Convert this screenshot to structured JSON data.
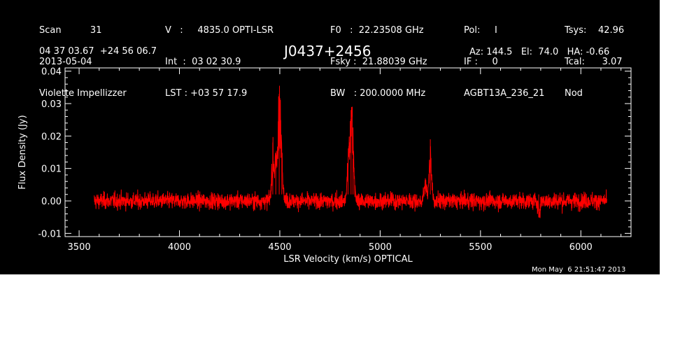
{
  "header": {
    "col1": [
      "Scan          31",
      "2013-05-04",
      "Violette Impellizzer"
    ],
    "col2": [
      "V   :     4835.0 OPTI-LSR",
      "Int  :  03 02 30.9",
      "LST : +03 57 17.9"
    ],
    "col3": [
      "F0   :  22.23508 GHz",
      "Fsky :  21.88039 GHz",
      "BW   : 200.0000 MHz"
    ],
    "col4": [
      "Pol:     I",
      "IF :     0",
      "AGBT13A_236_21"
    ],
    "col5": [
      "Tsys:    42.96",
      "Tcal:      3.07",
      "Nod"
    ],
    "coords": "04 37 03.67  +24 56 06.7",
    "source": "J0437+2456",
    "az_el_ha": "Az: 144.5   El:  74.0   HA: -0.66",
    "timestamp": "Mon May  6 21:51:47 2013"
  },
  "chart_data": {
    "type": "line",
    "xlabel": "LSR Velocity (km/s) OPTICAL",
    "ylabel": "Flux Density (Jy)",
    "xlim": [
      3430,
      6250
    ],
    "ylim": [
      -0.011,
      0.041
    ],
    "xticks": [
      3500,
      4000,
      4500,
      5000,
      5500,
      6000
    ],
    "yticks": [
      -0.01,
      0.0,
      0.01,
      0.02,
      0.03,
      0.04
    ],
    "ytick_labels": [
      "-0.01",
      "0.00",
      "0.01",
      "0.02",
      "0.03",
      "0.04"
    ],
    "grid": false,
    "line_color": "#ff0000",
    "axis_color": "#ffffff",
    "background": "#000000",
    "series": [
      {
        "x_range": [
          3575,
          6130
        ],
        "baseline": 0.0,
        "noise_rms": 0.002,
        "features": [
          {
            "x": 4465,
            "peak": 0.018
          },
          {
            "x": 4480,
            "peak": 0.012
          },
          {
            "x": 4497,
            "peak": 0.033
          },
          {
            "x": 4510,
            "peak": 0.014
          },
          {
            "x": 4840,
            "peak": 0.011
          },
          {
            "x": 4855,
            "peak": 0.028
          },
          {
            "x": 4865,
            "peak": 0.013
          },
          {
            "x": 5225,
            "peak": 0.007
          },
          {
            "x": 5250,
            "peak": 0.019
          },
          {
            "x": 5790,
            "peak": -0.005
          }
        ]
      }
    ]
  }
}
